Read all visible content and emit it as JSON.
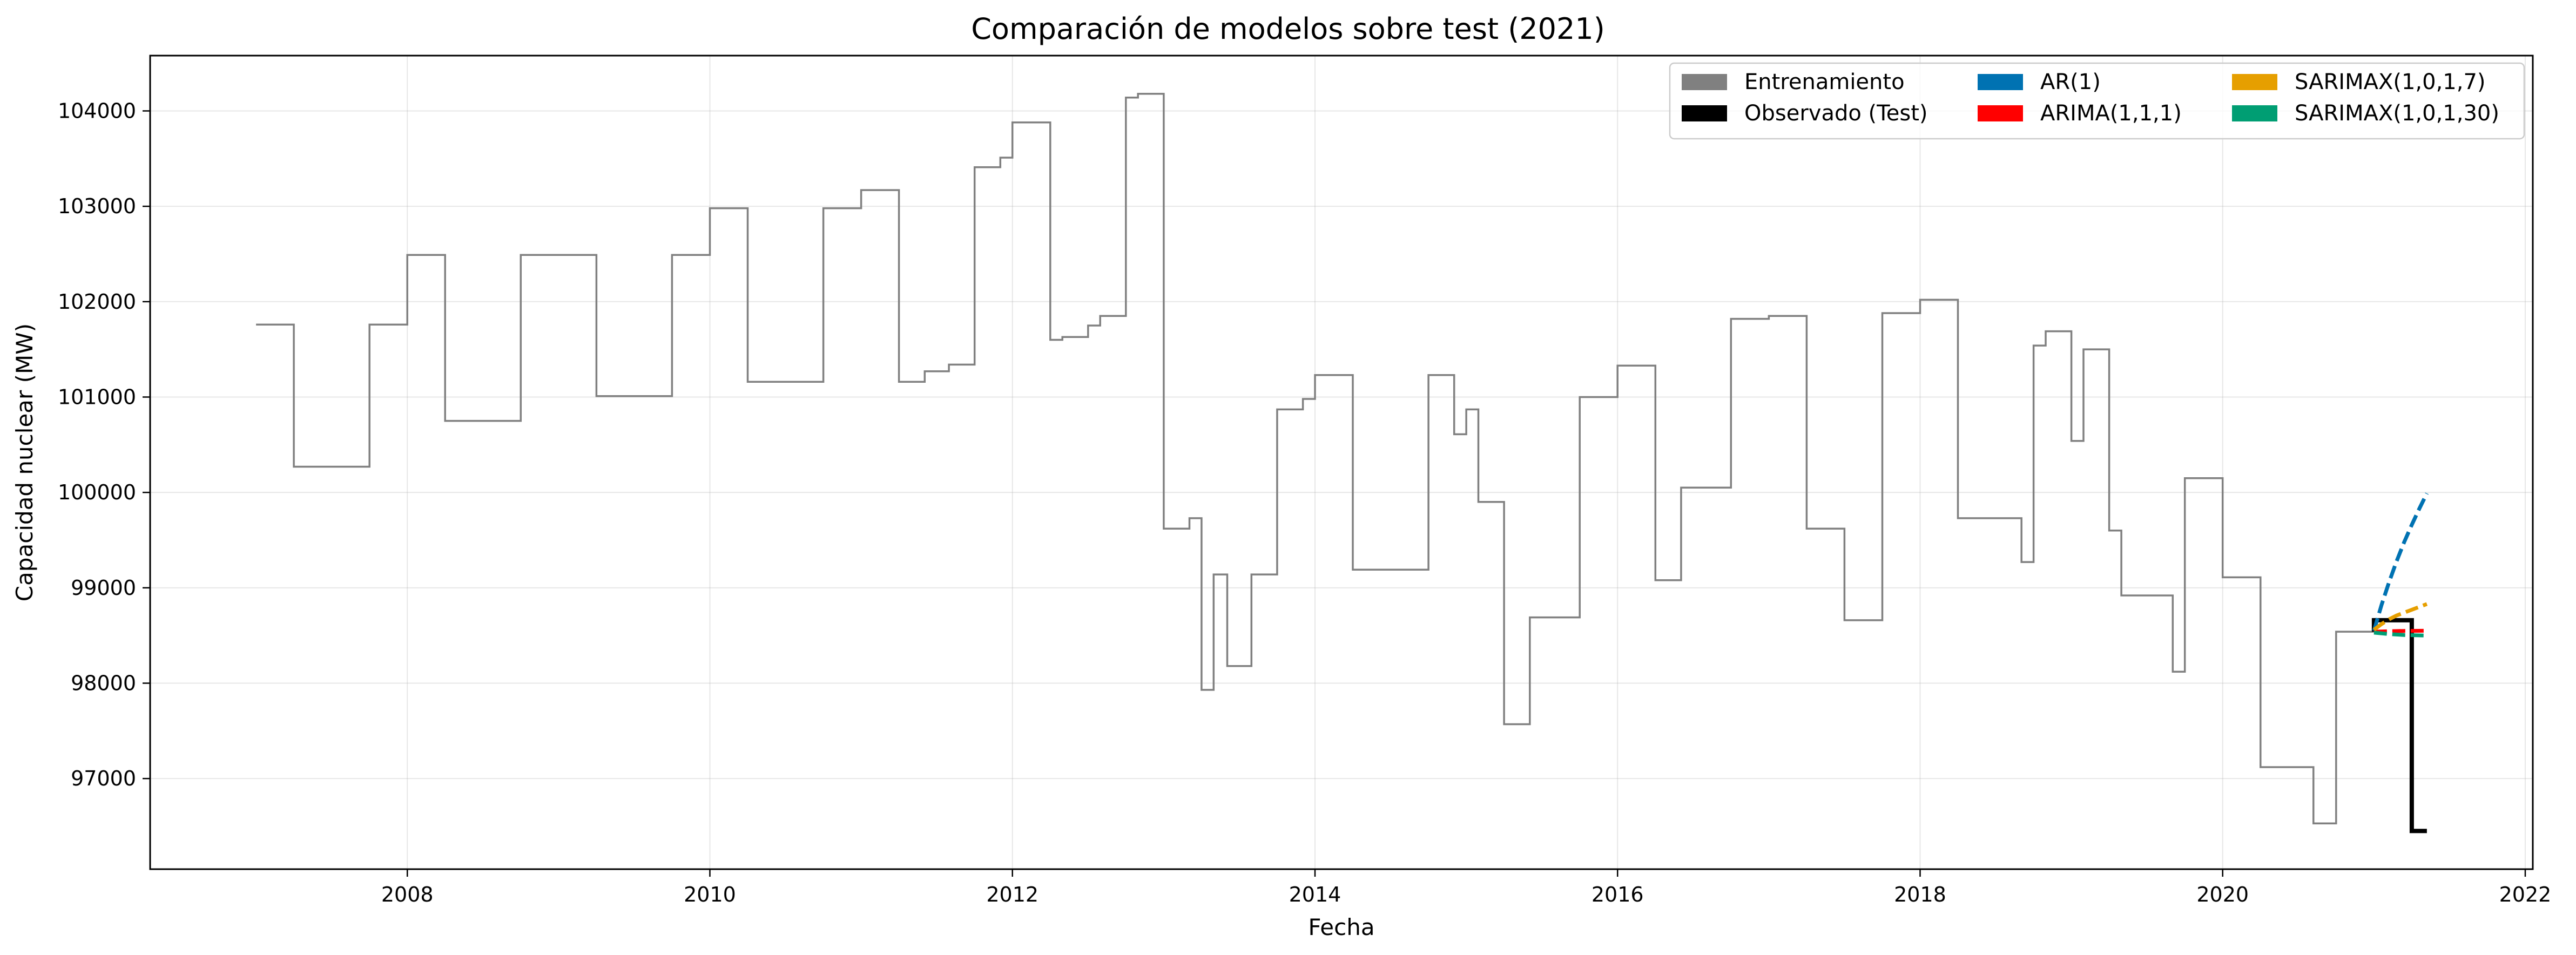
{
  "chart_data": {
    "type": "line",
    "title": "Comparación de modelos sobre test (2021)",
    "xlabel": "Fecha",
    "ylabel": "Capacidad nuclear (MW)",
    "xlim": [
      2006.3,
      2022.05
    ],
    "ylim": [
      96050,
      104580
    ],
    "x_ticks": [
      2008,
      2010,
      2012,
      2014,
      2016,
      2018,
      2020,
      2022
    ],
    "y_ticks": [
      97000,
      98000,
      99000,
      100000,
      101000,
      102000,
      103000,
      104000
    ],
    "grid": true,
    "legend_position": "upper right",
    "legend": [
      {
        "label": "Entrenamiento",
        "color": "#808080"
      },
      {
        "label": "Observado (Test)",
        "color": "#000000"
      },
      {
        "label": "AR(1)",
        "color": "#0072b2"
      },
      {
        "label": "ARIMA(1,1,1)",
        "color": "#ff0000"
      },
      {
        "label": "SARIMAX(1,0,1,7)",
        "color": "#e69f00"
      },
      {
        "label": "SARIMAX(1,0,1,30)",
        "color": "#009e73"
      }
    ],
    "series": [
      {
        "name": "Entrenamiento",
        "color": "#808080",
        "style": "step",
        "points": [
          [
            2007.0,
            101760
          ],
          [
            2007.25,
            101760
          ],
          [
            2007.25,
            100270
          ],
          [
            2007.75,
            100270
          ],
          [
            2007.75,
            101760
          ],
          [
            2008.0,
            101760
          ],
          [
            2008.0,
            102490
          ],
          [
            2008.25,
            102490
          ],
          [
            2008.25,
            100750
          ],
          [
            2008.75,
            100750
          ],
          [
            2008.75,
            102490
          ],
          [
            2009.25,
            102490
          ],
          [
            2009.25,
            101010
          ],
          [
            2009.75,
            101010
          ],
          [
            2009.75,
            102490
          ],
          [
            2010.0,
            102490
          ],
          [
            2010.0,
            102980
          ],
          [
            2010.25,
            102980
          ],
          [
            2010.25,
            101160
          ],
          [
            2010.75,
            101160
          ],
          [
            2010.75,
            102980
          ],
          [
            2011.0,
            102980
          ],
          [
            2011.0,
            103170
          ],
          [
            2011.25,
            103170
          ],
          [
            2011.25,
            101160
          ],
          [
            2011.42,
            101160
          ],
          [
            2011.42,
            101270
          ],
          [
            2011.58,
            101270
          ],
          [
            2011.58,
            101340
          ],
          [
            2011.75,
            101340
          ],
          [
            2011.75,
            103410
          ],
          [
            2011.92,
            103410
          ],
          [
            2011.92,
            103510
          ],
          [
            2012.0,
            103510
          ],
          [
            2012.0,
            103880
          ],
          [
            2012.25,
            103880
          ],
          [
            2012.25,
            101600
          ],
          [
            2012.33,
            101600
          ],
          [
            2012.33,
            101630
          ],
          [
            2012.5,
            101630
          ],
          [
            2012.5,
            101750
          ],
          [
            2012.58,
            101750
          ],
          [
            2012.58,
            101850
          ],
          [
            2012.75,
            101850
          ],
          [
            2012.75,
            104140
          ],
          [
            2012.83,
            104140
          ],
          [
            2012.83,
            104180
          ],
          [
            2013.0,
            104180
          ],
          [
            2013.0,
            99620
          ],
          [
            2013.17,
            99620
          ],
          [
            2013.17,
            99730
          ],
          [
            2013.25,
            99730
          ],
          [
            2013.25,
            97930
          ],
          [
            2013.33,
            97930
          ],
          [
            2013.33,
            99140
          ],
          [
            2013.42,
            99140
          ],
          [
            2013.42,
            98180
          ],
          [
            2013.58,
            98180
          ],
          [
            2013.58,
            99140
          ],
          [
            2013.75,
            99140
          ],
          [
            2013.75,
            100870
          ],
          [
            2013.92,
            100870
          ],
          [
            2013.92,
            100980
          ],
          [
            2014.0,
            100980
          ],
          [
            2014.0,
            101230
          ],
          [
            2014.25,
            101230
          ],
          [
            2014.25,
            99190
          ],
          [
            2014.75,
            99190
          ],
          [
            2014.75,
            101230
          ],
          [
            2014.92,
            101230
          ],
          [
            2014.92,
            100610
          ],
          [
            2015.0,
            100610
          ],
          [
            2015.0,
            100870
          ],
          [
            2015.08,
            100870
          ],
          [
            2015.08,
            99900
          ],
          [
            2015.25,
            99900
          ],
          [
            2015.25,
            97570
          ],
          [
            2015.42,
            97570
          ],
          [
            2015.42,
            98690
          ],
          [
            2015.75,
            98690
          ],
          [
            2015.75,
            101000
          ],
          [
            2016.0,
            101000
          ],
          [
            2016.0,
            101330
          ],
          [
            2016.25,
            101330
          ],
          [
            2016.25,
            99080
          ],
          [
            2016.42,
            99080
          ],
          [
            2016.42,
            100050
          ],
          [
            2016.75,
            100050
          ],
          [
            2016.75,
            101820
          ],
          [
            2017.0,
            101820
          ],
          [
            2017.0,
            101850
          ],
          [
            2017.25,
            101850
          ],
          [
            2017.25,
            99620
          ],
          [
            2017.5,
            99620
          ],
          [
            2017.5,
            98660
          ],
          [
            2017.75,
            98660
          ],
          [
            2017.75,
            101880
          ],
          [
            2018.0,
            101880
          ],
          [
            2018.0,
            102020
          ],
          [
            2018.25,
            102020
          ],
          [
            2018.25,
            99730
          ],
          [
            2018.67,
            99730
          ],
          [
            2018.67,
            99270
          ],
          [
            2018.75,
            99270
          ],
          [
            2018.75,
            101540
          ],
          [
            2018.83,
            101540
          ],
          [
            2018.83,
            101690
          ],
          [
            2019.0,
            101690
          ],
          [
            2019.0,
            100540
          ],
          [
            2019.08,
            100540
          ],
          [
            2019.08,
            101500
          ],
          [
            2019.25,
            101500
          ],
          [
            2019.25,
            99600
          ],
          [
            2019.33,
            99600
          ],
          [
            2019.33,
            98920
          ],
          [
            2019.67,
            98920
          ],
          [
            2019.67,
            98120
          ],
          [
            2019.75,
            98120
          ],
          [
            2019.75,
            100150
          ],
          [
            2020.0,
            100150
          ],
          [
            2020.0,
            99110
          ],
          [
            2020.25,
            99110
          ],
          [
            2020.25,
            97120
          ],
          [
            2020.6,
            97120
          ],
          [
            2020.6,
            96530
          ],
          [
            2020.75,
            96530
          ],
          [
            2020.75,
            98540
          ],
          [
            2021.0,
            98540
          ]
        ]
      },
      {
        "name": "Observado (Test)",
        "color": "#000000",
        "style": "step",
        "points": [
          [
            2021.0,
            98540
          ],
          [
            2021.0,
            98660
          ],
          [
            2021.25,
            98660
          ],
          [
            2021.25,
            98500
          ],
          [
            2021.25,
            96450
          ],
          [
            2021.35,
            96450
          ]
        ]
      },
      {
        "name": "AR(1)",
        "color": "#0072b2",
        "style": "dashed",
        "points": [
          [
            2021.0,
            98550
          ],
          [
            2021.05,
            98820
          ],
          [
            2021.1,
            99060
          ],
          [
            2021.15,
            99280
          ],
          [
            2021.2,
            99480
          ],
          [
            2021.25,
            99660
          ],
          [
            2021.3,
            99830
          ],
          [
            2021.35,
            99990
          ]
        ]
      },
      {
        "name": "ARIMA(1,1,1)",
        "color": "#ff0000",
        "style": "dashed",
        "points": [
          [
            2021.0,
            98540
          ],
          [
            2021.1,
            98545
          ],
          [
            2021.2,
            98548
          ],
          [
            2021.35,
            98550
          ]
        ]
      },
      {
        "name": "SARIMAX(1,0,1,7)",
        "color": "#e69f00",
        "style": "dashed",
        "points": [
          [
            2021.0,
            98560
          ],
          [
            2021.05,
            98620
          ],
          [
            2021.1,
            98670
          ],
          [
            2021.15,
            98710
          ],
          [
            2021.2,
            98740
          ],
          [
            2021.25,
            98770
          ],
          [
            2021.3,
            98800
          ],
          [
            2021.35,
            98830
          ]
        ]
      },
      {
        "name": "SARIMAX(1,0,1,30)",
        "color": "#009e73",
        "style": "dashed",
        "points": [
          [
            2021.0,
            98530
          ],
          [
            2021.1,
            98515
          ],
          [
            2021.2,
            98505
          ],
          [
            2021.35,
            98500
          ]
        ]
      }
    ]
  }
}
